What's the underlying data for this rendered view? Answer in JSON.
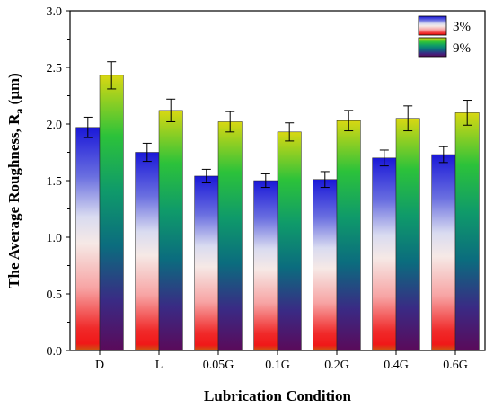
{
  "chart_data": {
    "type": "bar",
    "xlabel": "Lubrication Condition",
    "ylabel": "The Average Roughness, R",
    "ylabel_sub": "a",
    "ylabel_unit": " (μm)",
    "categories": [
      "D",
      "L",
      "0.05G",
      "0.1G",
      "0.2G",
      "0.4G",
      "0.6G"
    ],
    "ylim": [
      0.0,
      3.0
    ],
    "yticks": [
      "0.0",
      "0.5",
      "1.0",
      "1.5",
      "2.0",
      "2.5",
      "3.0"
    ],
    "grid": false,
    "legend_position": "top-right",
    "series": [
      {
        "name": "3%",
        "values": [
          1.97,
          1.75,
          1.54,
          1.5,
          1.51,
          1.7,
          1.73
        ],
        "errors": [
          0.09,
          0.08,
          0.06,
          0.06,
          0.07,
          0.07,
          0.07
        ]
      },
      {
        "name": "9%",
        "values": [
          2.43,
          2.12,
          2.02,
          1.93,
          2.03,
          2.05,
          2.1
        ],
        "errors": [
          0.12,
          0.1,
          0.09,
          0.08,
          0.09,
          0.11,
          0.11
        ]
      }
    ]
  }
}
